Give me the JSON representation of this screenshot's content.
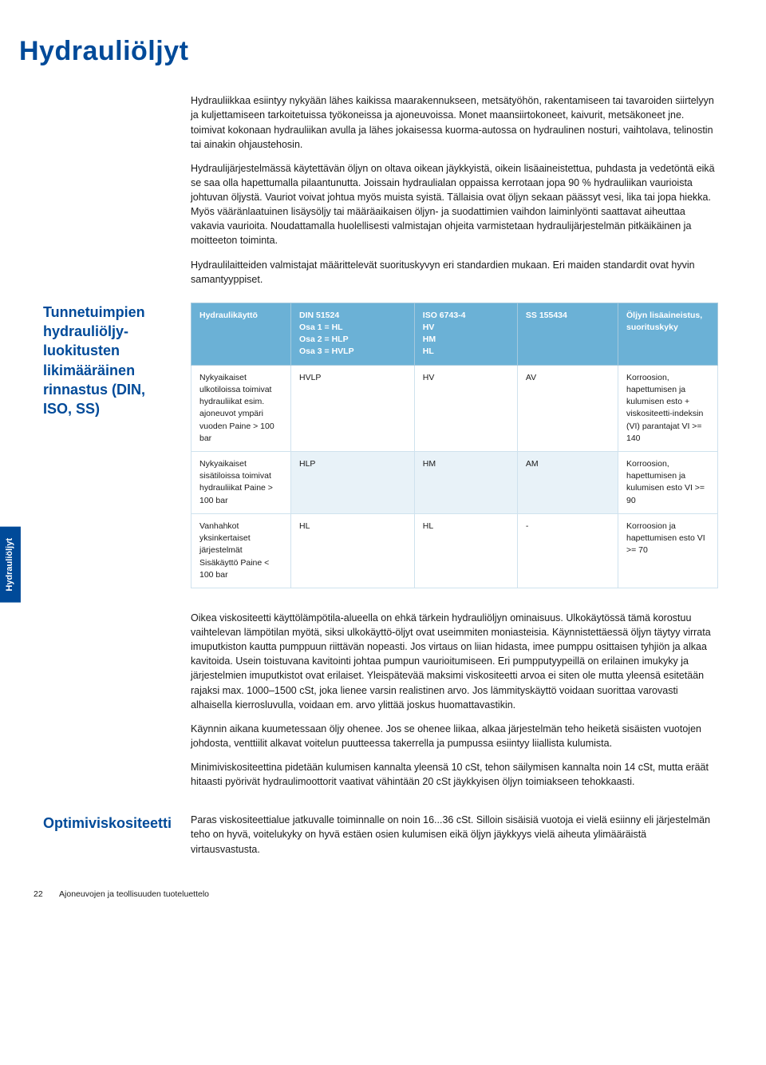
{
  "side_tab": "Hydrauliöljyt",
  "title": "Hydrauliöljyt",
  "intro": {
    "p1": "Hydrauliikkaa esiintyy nykyään lähes kaikissa maarakennukseen, metsätyöhön, rakentamiseen tai tavaroiden siirtelyyn ja kuljettamiseen tarkoitetuissa työkoneissa ja ajoneuvoissa. Monet maansiirtokoneet, kaivurit, metsäkoneet jne. toimivat kokonaan hydrauliikan avulla ja lähes jokaisessa kuorma-autossa on hydraulinen nosturi, vaihtolava, telinostin tai ainakin ohjaustehosin.",
    "p2": "Hydraulijärjestelmässä käytettävän öljyn on oltava oikean jäykkyistä, oikein lisäaineistettua, puhdasta ja vedetöntä eikä se saa olla hapettumalla pilaantunutta. Joissain hydraulialan oppaissa kerrotaan jopa 90 % hydrauliikan vaurioista johtuvan öljystä. Vauriot voivat johtua myös muista syistä. Tällaisia ovat öljyn sekaan päässyt vesi, lika tai jopa hiekka. Myös vääränlaatuinen lisäysöljy tai määräaikaisen öljyn- ja suodattimien vaihdon laiminlyönti saattavat aiheuttaa vakavia vaurioita. Noudattamalla huolellisesti valmistajan ohjeita varmistetaan hydraulijärjestelmän pitkäikäinen ja moitteeton toiminta.",
    "p3": "Hydraulilaitteiden valmistajat määrittelevät suorituskyvyn eri standardien mukaan. Eri maiden standardit ovat hyvin samantyyppiset."
  },
  "sidebar_heading": "Tunnetuimpien hydrauliöljy-luokitusten likimääräinen rinnastus (DIN, ISO, SS)",
  "table": {
    "headers": {
      "c1": "Hydraulikäyttö",
      "c2": "DIN 51524\nOsa 1 = HL\nOsa 2 = HLP\nOsa 3 = HVLP",
      "c3": "ISO 6743-4\nHV\nHM\nHL",
      "c4": "SS 155434",
      "c5": "Öljyn lisäaineistus, suorituskyky"
    },
    "rows": [
      {
        "c1": "Nykyaikaiset ulkotiloissa toimivat hydrauliikat esim. ajoneuvot ympäri vuoden Paine > 100 bar",
        "c2": "HVLP",
        "c3": "HV",
        "c4": "AV",
        "c5": "Korroosion, hapettumisen ja kulumisen esto + viskositeetti-indeksin (VI) parantajat VI >= 140"
      },
      {
        "c1": "Nykyaikaiset sisätiloissa toimivat hydrauliikat Paine > 100 bar",
        "c2": "HLP",
        "c3": "HM",
        "c4": "AM",
        "c5": "Korroosion, hapettumisen ja kulumisen esto VI >= 90"
      },
      {
        "c1": "Vanhahkot yksinkertaiset järjestelmät Sisäkäyttö Paine < 100 bar",
        "c2": "HL",
        "c3": "HL",
        "c4": "-",
        "c5": "Korroosion ja hapettumisen esto VI >= 70"
      }
    ]
  },
  "lower": {
    "p1": "Oikea viskositeetti käyttölämpötila-alueella on ehkä tärkein hydrauliöljyn ominaisuus. Ulkokäytössä tämä korostuu vaihtelevan lämpötilan myötä, siksi ulkokäyttö-öljyt ovat useimmiten moniasteisia. Käynnistettäessä öljyn täytyy virrata imuputkiston kautta pumppuun riittävän nopeasti. Jos virtaus on liian hidasta, imee pumppu osittaisen tyhjiön ja alkaa kavitoida. Usein toistuvana kavitointi johtaa pumpun vaurioitumiseen. Eri pumpputyypeillä on erilainen imukyky ja järjestelmien imuputkistot ovat erilaiset. Yleispätevää maksimi viskositeetti arvoa ei siten ole mutta yleensä esitetään rajaksi max. 1000–1500 cSt, joka lienee varsin realistinen arvo. Jos lämmityskäyttö voidaan suorittaa varovasti alhaisella kierrosluvulla, voidaan em. arvo ylittää joskus huomattavastikin.",
    "p2": "Käynnin aikana kuumetessaan öljy ohenee. Jos se ohenee liikaa, alkaa järjestelmän teho heiketä sisäisten vuotojen johdosta, venttiilit alkavat voitelun puutteessa takerrella ja pumpussa esiintyy liiallista kulumista.",
    "p3": "Minimiviskositeettina pidetään kulumisen kannalta yleensä 10 cSt, tehon säilymisen kannalta noin 14 cSt, mutta eräät hitaasti pyörivät hydraulimoottorit vaativat vähintään 20 cSt jäykkyisen öljyn toimiakseen tehokkaasti."
  },
  "sub": {
    "label": "Optimiviskositeetti",
    "text": "Paras viskositeettialue jatkuvalle toiminnalle on noin 16...36 cSt. Silloin sisäisiä vuotoja ei vielä esiinny eli järjestelmän teho on hyvä, voitelukyky on hyvä estäen osien kulumisen eikä öljyn jäykkyys vielä aiheuta ylimääräistä virtausvastusta."
  },
  "footer": {
    "page": "22",
    "label": "Ajoneuvojen ja teollisuuden tuoteluettelo"
  },
  "colors": {
    "brand_blue": "#004a99",
    "table_header_bg": "#6bb1d6",
    "table_row_alt": "#e8f2f8",
    "border": "#cfe2ee"
  }
}
